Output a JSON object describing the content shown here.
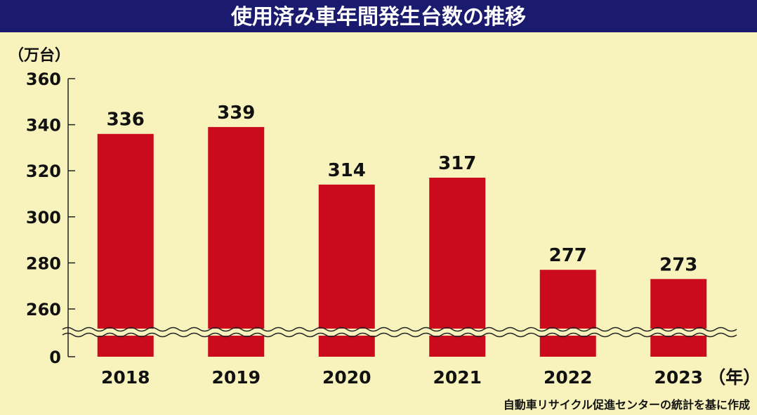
{
  "chart_data": {
    "type": "bar",
    "title": "使用済み車年間発生台数の推移",
    "y_unit": "（万台）",
    "x_unit": "（年）",
    "categories": [
      "2018",
      "2019",
      "2020",
      "2021",
      "2022",
      "2023"
    ],
    "values": [
      336,
      339,
      314,
      317,
      277,
      273
    ],
    "value_labels": [
      "336",
      "339",
      "314",
      "317",
      "277",
      "273"
    ],
    "yticks": [
      360,
      340,
      320,
      300,
      280,
      260,
      0
    ],
    "ylim": [
      0,
      360
    ],
    "axis_break": "between 0 and 260",
    "grid": false,
    "legend": "none",
    "source": "自動車リサイクル促進センターの統計を基に作成",
    "colors": {
      "bar": "#cc0a1e",
      "background": "#f8f3bd",
      "title_band": "#1a1a6e"
    }
  }
}
